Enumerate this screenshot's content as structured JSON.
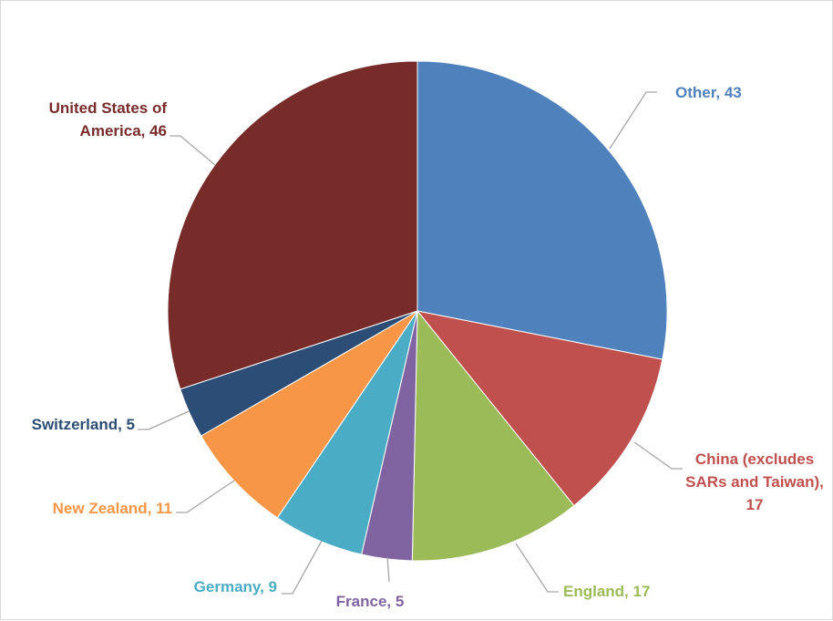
{
  "chart_data": {
    "type": "pie",
    "title": "",
    "start_angle_deg": 0,
    "direction": "clockwise",
    "slices": [
      {
        "name": "Other",
        "value": 43,
        "color": "#4F81BD",
        "label_lines": [
          "Other, 43"
        ],
        "label_color": "#4F81BD"
      },
      {
        "name": "China (excludes SARs and Taiwan)",
        "value": 17,
        "color": "#C0504D",
        "label_lines": [
          "China (excludes",
          "SARs and Taiwan),",
          "17"
        ],
        "label_color": "#C0504D"
      },
      {
        "name": "England",
        "value": 17,
        "color": "#9BBB59",
        "label_lines": [
          "England, 17"
        ],
        "label_color": "#9BBB59"
      },
      {
        "name": "France",
        "value": 5,
        "color": "#8064A2",
        "label_lines": [
          "France, 5"
        ],
        "label_color": "#8064A2"
      },
      {
        "name": "Germany",
        "value": 9,
        "color": "#4BACC6",
        "label_lines": [
          "Germany, 9"
        ],
        "label_color": "#4BACC6"
      },
      {
        "name": "New Zealand",
        "value": 11,
        "color": "#F79646",
        "label_lines": [
          "New Zealand, 11"
        ],
        "label_color": "#F79646"
      },
      {
        "name": "Switzerland",
        "value": 5,
        "color": "#2C4D75",
        "label_lines": [
          "Switzerland, 5"
        ],
        "label_color": "#2C4D75"
      },
      {
        "name": "United States of America",
        "value": 46,
        "color": "#772C2A",
        "label_lines": [
          "United States of",
          "America, 46"
        ],
        "label_color": "#772C2A"
      }
    ],
    "leader_line_color": "#A6A6A6"
  }
}
